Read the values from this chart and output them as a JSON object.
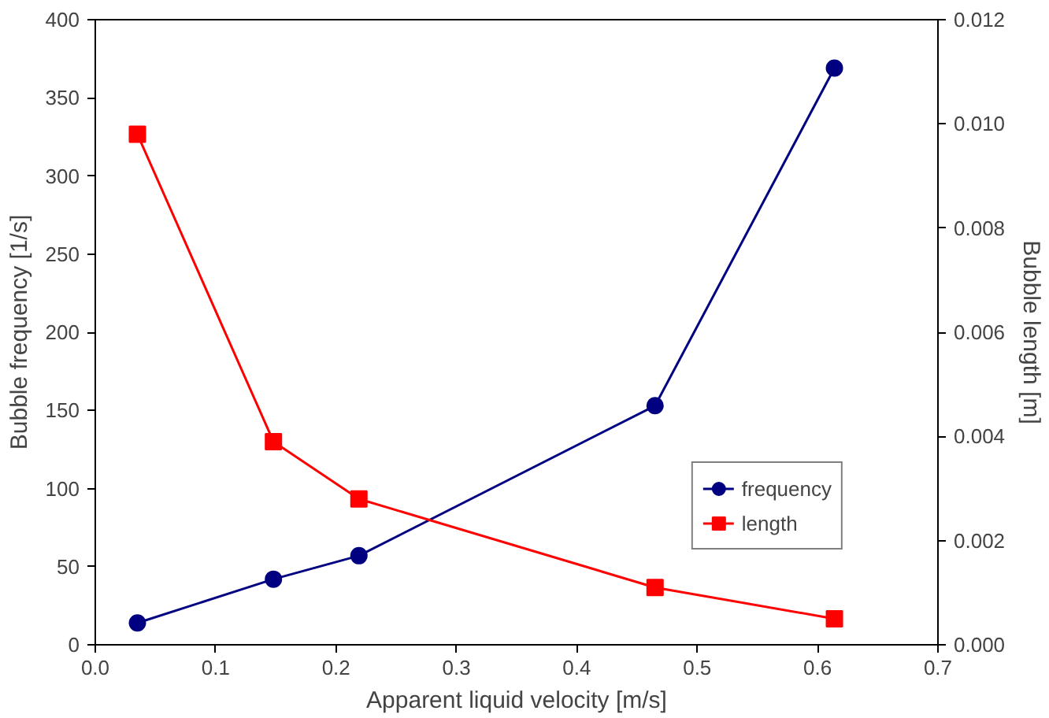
{
  "chart_data": {
    "type": "line",
    "xlabel": "Apparent liquid velocity [m/s]",
    "ylabel": "Bubble frequency [1/s]",
    "y2label": "Bubble length [m]",
    "xlim": [
      0,
      0.7
    ],
    "xticks": [
      {
        "value": 0,
        "label": "0.0"
      },
      0.1,
      0.2,
      0.3,
      0.4,
      0.5,
      0.6,
      0.7
    ],
    "ylim": [
      0,
      400
    ],
    "yticks": [
      0,
      50,
      100,
      150,
      200,
      250,
      300,
      350,
      400
    ],
    "y2lim": [
      0,
      0.012
    ],
    "y2ticks": [
      {
        "value": 0,
        "label": "0.000"
      },
      {
        "value": 0.002,
        "label": "0.002"
      },
      {
        "value": 0.004,
        "label": "0.004"
      },
      {
        "value": 0.006,
        "label": "0.006"
      },
      {
        "value": 0.008,
        "label": "0.008"
      },
      {
        "value": 0.01,
        "label": "0.010"
      },
      {
        "value": 0.012,
        "label": "0.012"
      }
    ],
    "x": [
      0.035,
      0.148,
      0.219,
      0.465,
      0.614
    ],
    "series": [
      {
        "name": "frequency",
        "color": "#000080",
        "values": [
          14,
          42,
          57,
          153,
          369
        ],
        "marker": "circle"
      },
      {
        "name": "length",
        "color": "#ff0000",
        "values": [
          0.0098,
          0.0039,
          0.0028,
          0.0011,
          0.0005
        ],
        "axis": "y2",
        "marker": "square"
      }
    ],
    "legend": "bottom right",
    "grid": false,
    "line_style": "solid"
  }
}
